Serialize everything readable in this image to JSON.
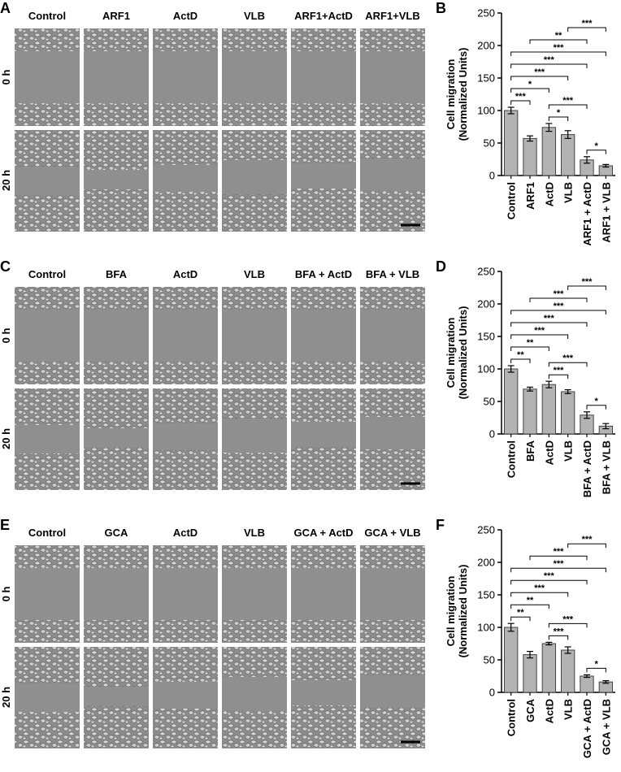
{
  "panels": [
    {
      "label": "A",
      "columns": [
        "Control",
        "ARF1",
        "ActD",
        "VLB",
        "ARF1+ActD",
        "ARF1+VLB"
      ],
      "rows": [
        "0 h",
        "20 h"
      ]
    },
    {
      "label": "C",
      "columns": [
        "Control",
        "BFA",
        "ActD",
        "VLB",
        "BFA + ActD",
        "BFA + VLB"
      ],
      "rows": [
        "0 h",
        "20 h"
      ]
    },
    {
      "label": "E",
      "columns": [
        "Control",
        "GCA",
        "ActD",
        "VLB",
        "GCA + ActD",
        "GCA + VLB"
      ],
      "rows": [
        "0 h",
        "20 h"
      ]
    }
  ],
  "chart_data": [
    {
      "type": "bar",
      "label": "B",
      "ylabel": [
        "Cell migration",
        "(Normalized Units)"
      ],
      "color": "#b3b3b3",
      "categories": [
        "Control",
        "ARF1",
        "ActD",
        "VLB",
        "ARF1 + ActD",
        "ARF1 + VLB"
      ],
      "values": [
        100,
        57,
        74,
        63,
        24,
        15
      ],
      "errors": [
        5,
        4,
        6,
        6,
        5,
        2
      ],
      "ylim": [
        0,
        250
      ],
      "yticks": [
        0,
        50,
        100,
        150,
        200,
        250
      ],
      "annotations": [
        {
          "text": "*",
          "between": [
            "ARF1 + ActD",
            "ARF1 + VLB"
          ]
        },
        {
          "text": "*",
          "between": [
            "ActD",
            "VLB"
          ]
        },
        {
          "text": "***",
          "between": [
            "Control",
            "ARF1"
          ]
        },
        {
          "text": "*",
          "between": [
            "Control",
            "ActD"
          ]
        },
        {
          "text": "***",
          "between": [
            "ActD",
            "ARF1 + ActD"
          ]
        },
        {
          "text": "***",
          "between": [
            "Control",
            "VLB"
          ]
        },
        {
          "text": "***",
          "between": [
            "Control",
            "ARF1 + ActD"
          ]
        },
        {
          "text": "***",
          "between": [
            "Control",
            "ARF1 + VLB"
          ]
        },
        {
          "text": "**",
          "between": [
            "ARF1",
            "ARF1 + ActD"
          ]
        },
        {
          "text": "***",
          "between": [
            "VLB",
            "ARF1 + VLB"
          ]
        }
      ]
    },
    {
      "type": "bar",
      "label": "D",
      "ylabel": [
        "Cell migration",
        "(Normalized Units)"
      ],
      "color": "#b3b3b3",
      "categories": [
        "Control",
        "BFA",
        "ActD",
        "VLB",
        "BFA + ActD",
        "BFA + VLB"
      ],
      "values": [
        100,
        69,
        76,
        65,
        29,
        12
      ],
      "errors": [
        5,
        3,
        5,
        3,
        5,
        4
      ],
      "ylim": [
        0,
        250
      ],
      "yticks": [
        0,
        50,
        100,
        150,
        200,
        250
      ],
      "annotations": [
        {
          "text": "*",
          "between": [
            "BFA + ActD",
            "BFA + VLB"
          ]
        },
        {
          "text": "***",
          "between": [
            "ActD",
            "VLB"
          ]
        },
        {
          "text": "**",
          "between": [
            "Control",
            "BFA"
          ]
        },
        {
          "text": "**",
          "between": [
            "Control",
            "ActD"
          ]
        },
        {
          "text": "***",
          "between": [
            "ActD",
            "BFA + ActD"
          ]
        },
        {
          "text": "***",
          "between": [
            "Control",
            "VLB"
          ]
        },
        {
          "text": "***",
          "between": [
            "Control",
            "BFA + ActD"
          ]
        },
        {
          "text": "***",
          "between": [
            "Control",
            "BFA + VLB"
          ]
        },
        {
          "text": "***",
          "between": [
            "BFA",
            "BFA + ActD"
          ]
        },
        {
          "text": "***",
          "between": [
            "VLB",
            "BFA + VLB"
          ]
        }
      ]
    },
    {
      "type": "bar",
      "label": "F",
      "ylabel": [
        "Cell migration",
        "(Normalized Units)"
      ],
      "color": "#b3b3b3",
      "categories": [
        "Control",
        "GCA",
        "ActD",
        "VLB",
        "GCA + ActD",
        "GCA + VLB"
      ],
      "values": [
        100,
        58,
        75,
        65,
        25,
        16
      ],
      "errors": [
        6,
        5,
        2,
        5,
        2,
        2
      ],
      "ylim": [
        0,
        250
      ],
      "yticks": [
        0,
        50,
        100,
        150,
        200,
        250
      ],
      "annotations": [
        {
          "text": "*",
          "between": [
            "GCA + ActD",
            "GCA + VLB"
          ]
        },
        {
          "text": "***",
          "between": [
            "ActD",
            "VLB"
          ]
        },
        {
          "text": "**",
          "between": [
            "Control",
            "GCA"
          ]
        },
        {
          "text": "**",
          "between": [
            "Control",
            "ActD"
          ]
        },
        {
          "text": "***",
          "between": [
            "ActD",
            "GCA + ActD"
          ]
        },
        {
          "text": "***",
          "between": [
            "Control",
            "VLB"
          ]
        },
        {
          "text": "***",
          "between": [
            "Control",
            "GCA + ActD"
          ]
        },
        {
          "text": "***",
          "between": [
            "Control",
            "GCA + VLB"
          ]
        },
        {
          "text": "***",
          "between": [
            "GCA",
            "GCA + ActD"
          ]
        },
        {
          "text": "***",
          "between": [
            "VLB",
            "GCA + VLB"
          ]
        }
      ]
    }
  ]
}
